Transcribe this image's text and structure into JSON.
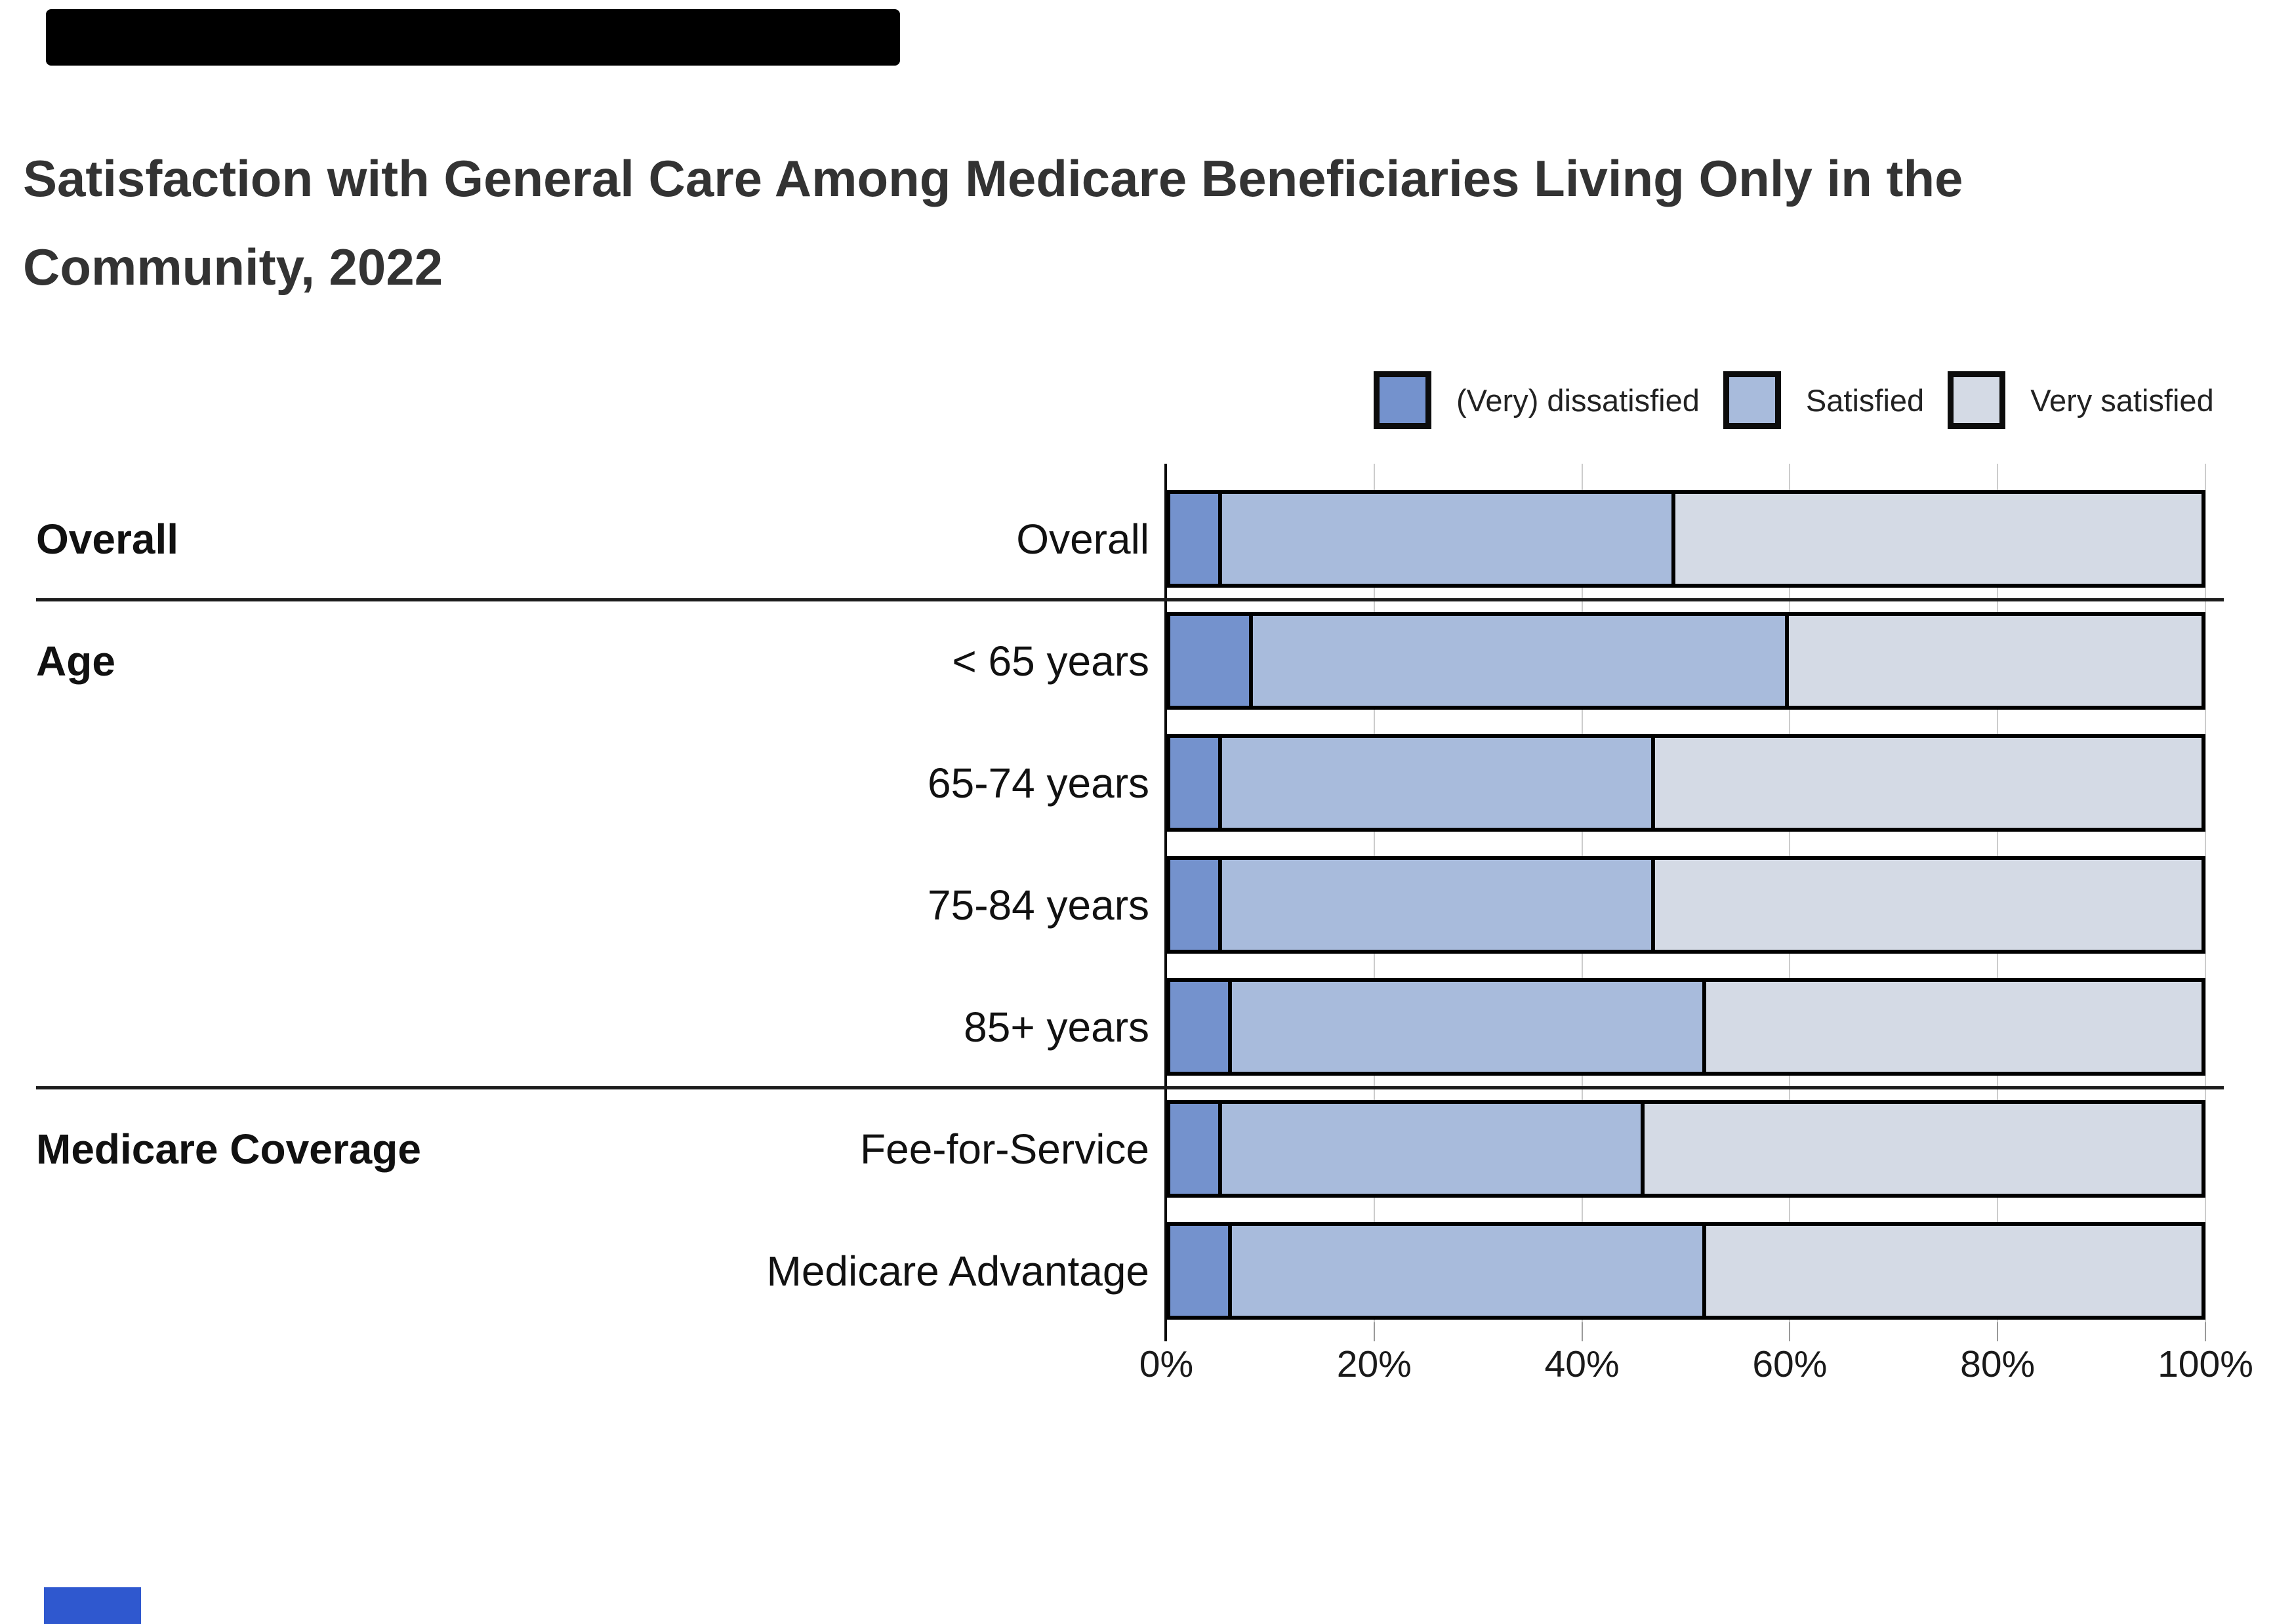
{
  "page": {
    "background": "#ffffff"
  },
  "artifacts": {
    "top_bar_color": "#000000",
    "bottom_left_box_color": "#2f58cf"
  },
  "title": {
    "lines": [
      "Satisfaction with General Care Among Medicare Beneficiaries Living Only in the",
      "Community, 2022"
    ],
    "color": "#333333"
  },
  "legend": {
    "items": [
      {
        "label": "(Very) dissatisfied",
        "color": "#7492cd"
      },
      {
        "label": "Satisfied",
        "color": "#a8bbdc"
      },
      {
        "label": "Very satisfied",
        "color": "#d4dae5"
      }
    ]
  },
  "chart_data": {
    "type": "bar",
    "stacked": true,
    "orientation": "horizontal",
    "unit": "percent",
    "xlim": [
      0,
      100
    ],
    "x_tick_labels": [
      "0%",
      "20%",
      "40%",
      "60%",
      "80%",
      "100%"
    ],
    "grid": true,
    "legend_position": "top-right",
    "series_names": [
      "(Very) dissatisfied",
      "Satisfied",
      "Very satisfied"
    ],
    "sections": [
      {
        "header": "Overall",
        "rows": [
          {
            "label": "Overall",
            "values": [
              5,
              44,
              51
            ]
          }
        ]
      },
      {
        "header": "Age",
        "rows": [
          {
            "label": "< 65 years",
            "values": [
              8,
              52,
              40
            ]
          },
          {
            "label": "65-74 years",
            "values": [
              5,
              42,
              53
            ]
          },
          {
            "label": "75-84 years",
            "values": [
              5,
              42,
              53
            ]
          },
          {
            "label": "85+ years",
            "values": [
              6,
              46,
              48
            ]
          }
        ]
      },
      {
        "header": "Medicare Coverage",
        "rows": [
          {
            "label": "Fee-for-Service",
            "values": [
              5,
              41,
              54
            ]
          },
          {
            "label": "Medicare Advantage",
            "values": [
              6,
              46,
              48
            ]
          }
        ]
      }
    ]
  },
  "colors": {
    "segment_colors": [
      "#7492cd",
      "#a8bbdc",
      "#d4dae5"
    ],
    "bar_border": "#000000",
    "axis_line": "#0a0a0a",
    "gridline": "#cccccc",
    "tick": "#9a9a9a",
    "divider": "#1c1c1c",
    "title_text": "#333333",
    "label_text": "#111111"
  }
}
